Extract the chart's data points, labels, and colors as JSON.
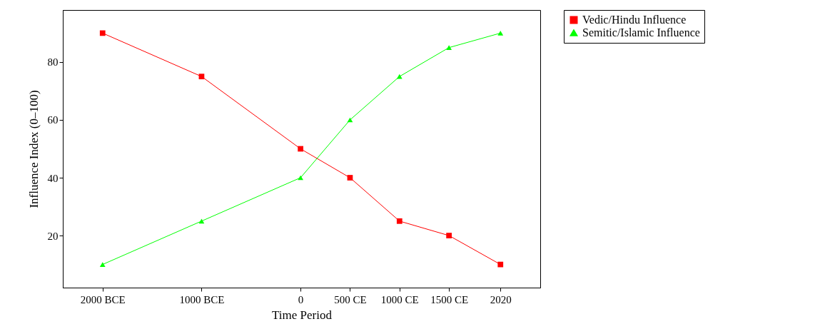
{
  "chart_data": {
    "type": "line",
    "xlabel": "Time Period",
    "ylabel": "Influence Index (0–100)",
    "x": [
      -2000,
      -1000,
      0,
      500,
      1000,
      1500,
      2020
    ],
    "xlim": [
      -2402,
      2422
    ],
    "xticks": [
      {
        "value": -2000,
        "label": "2000 BCE"
      },
      {
        "value": -1000,
        "label": "1000 BCE"
      },
      0,
      {
        "value": 500,
        "label": "500 CE"
      },
      {
        "value": 1000,
        "label": "1000 CE"
      },
      {
        "value": 1500,
        "label": "1500 CE"
      },
      2020
    ],
    "ylim": [
      2,
      98
    ],
    "yticks": [
      20,
      40,
      60,
      80
    ],
    "series": [
      {
        "name": "Vedic/Hindu Influence",
        "color": "#ff0000",
        "marker": "square",
        "values": [
          90,
          75,
          50,
          40,
          25,
          20,
          10
        ]
      },
      {
        "name": "Semitic/Islamic Influence",
        "color": "#00ff00",
        "marker": "triangle",
        "values": [
          10,
          25,
          40,
          60,
          75,
          85,
          90
        ]
      }
    ],
    "grid": false,
    "legend": "top right"
  }
}
